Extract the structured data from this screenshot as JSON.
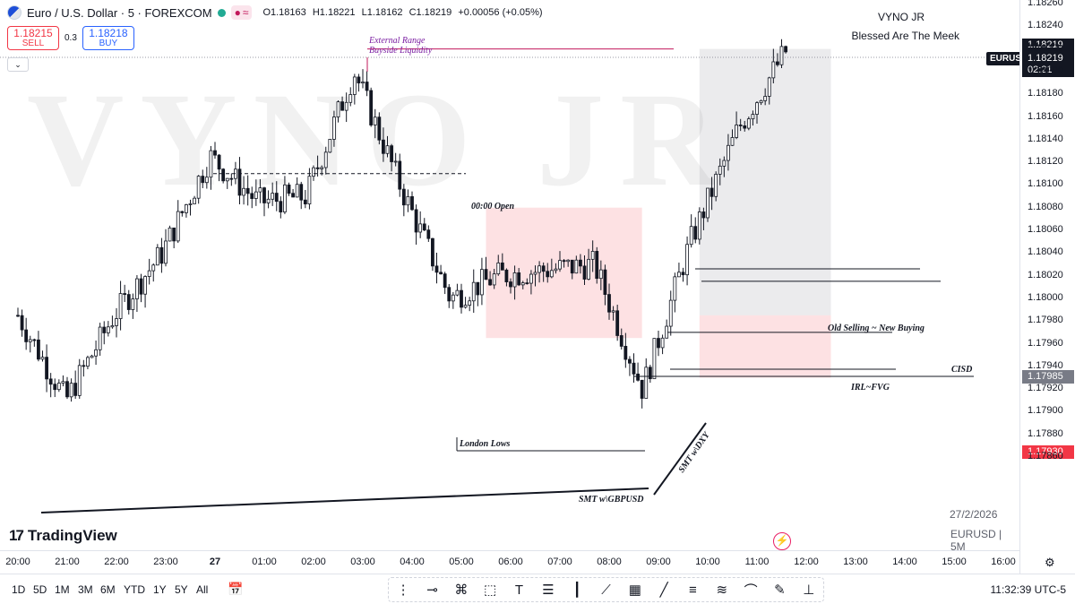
{
  "header": {
    "symbol": "Euro / U.S. Dollar · 5 · FOREXCOM",
    "open": "O1.18163",
    "high": "H1.18221",
    "low": "L1.18162",
    "close": "C1.18219",
    "change": "+0.00056 (+0.05%)",
    "pill_icon": "≈"
  },
  "trade": {
    "sell_price": "1.18215",
    "sell_label": "SELL",
    "spread": "0.3",
    "buy_price": "1.18218",
    "buy_label": "BUY"
  },
  "branding": {
    "author": "VYNO JR",
    "tagline": "Blessed Are The Meek",
    "watermark": "VYNO JR"
  },
  "annotations": {
    "external_range": "External Range",
    "buyside_liquidity": "Buyside Liquidity",
    "open_label": "00:00 Open",
    "london_lows": "London Lows",
    "smt_gbpusd": "SMT w\\GBPUSD",
    "smt_dxy": "SMT w\\DXY",
    "old_selling": "Old Selling ~ New Buying",
    "cisd": "CISD",
    "irl_fvg": "IRL~FVG"
  },
  "chart_info": {
    "date": "27/2/2026",
    "symbol_tf": "EURUSD | 5M",
    "logo_text": "TradingView",
    "logo_mark": "17"
  },
  "price_axis": {
    "ticks": [
      "1.18260",
      "1.18240",
      "1.18220",
      "1.18200",
      "1.18180",
      "1.18160",
      "1.18140",
      "1.18120",
      "1.18100",
      "1.18080",
      "1.18060",
      "1.18040",
      "1.18020",
      "1.18000",
      "1.17980",
      "1.17960",
      "1.17940",
      "1.17920",
      "1.17900",
      "1.17880",
      "1.17860"
    ],
    "label_bid": "1.18219",
    "label_last": "1.18219",
    "label_countdown": "02:21",
    "symbol_tag": "EURUSD",
    "label_grey": "1.17985",
    "label_red": "1.17930"
  },
  "time_axis": {
    "ticks": [
      "20:00",
      "21:00",
      "22:00",
      "23:00",
      "27",
      "01:00",
      "02:00",
      "03:00",
      "04:00",
      "05:00",
      "06:00",
      "07:00",
      "08:00",
      "09:00",
      "10:00",
      "11:00",
      "12:00",
      "13:00",
      "14:00",
      "15:00",
      "16:00"
    ]
  },
  "bottom_bar": {
    "ranges": [
      "1D",
      "5D",
      "1M",
      "3M",
      "6M",
      "YTD",
      "1Y",
      "5Y",
      "All"
    ],
    "time": "11:32:39 UTC-5"
  },
  "colors": {
    "up": "#131722",
    "down": "#131722",
    "red_zone": "rgba(242,54,69,0.15)",
    "grey_zone": "rgba(120,123,134,0.15)",
    "purple": "#7b1fa2",
    "red_label": "#f23645",
    "grey_label": "#787b86"
  },
  "chart_data": {
    "type": "candlestick",
    "symbol": "EURUSD",
    "timeframe": "5",
    "ylim": [
      1.1785,
      1.1827
    ],
    "x": [
      "20:00",
      "21:00",
      "22:00",
      "23:00",
      "00:00",
      "01:00",
      "02:00",
      "03:00",
      "04:00",
      "05:00",
      "06:00",
      "07:00",
      "08:00",
      "09:00",
      "10:00",
      "11:00",
      "11:30"
    ],
    "close": [
      1.17985,
      1.1791,
      1.17985,
      1.1804,
      1.18125,
      1.18085,
      1.1809,
      1.182,
      1.18095,
      1.18,
      1.1802,
      1.18025,
      1.1803,
      1.1792,
      1.1805,
      1.1815,
      1.18219
    ],
    "levels": [
      {
        "label": "External Range / Buyside Liquidity",
        "price": 1.1822
      },
      {
        "label": "00:00 Open",
        "price": 1.1811
      },
      {
        "label": "Old Selling ~ New Buying",
        "price": 1.18015
      },
      {
        "label": "CISD",
        "price": 1.1799
      },
      {
        "label": "IRL~FVG",
        "price": 1.1797
      },
      {
        "label": "London Lows",
        "price": 1.17935
      }
    ],
    "zones": [
      {
        "type": "red",
        "from": "05:30",
        "to": "08:40",
        "high": 1.1808,
        "low": 1.17965
      },
      {
        "type": "red",
        "from": "09:50",
        "to": "12:30",
        "high": 1.17985,
        "low": 1.1793
      },
      {
        "type": "grey",
        "from": "09:50",
        "to": "12:30",
        "high": 1.1822,
        "low": 1.17985
      }
    ]
  }
}
